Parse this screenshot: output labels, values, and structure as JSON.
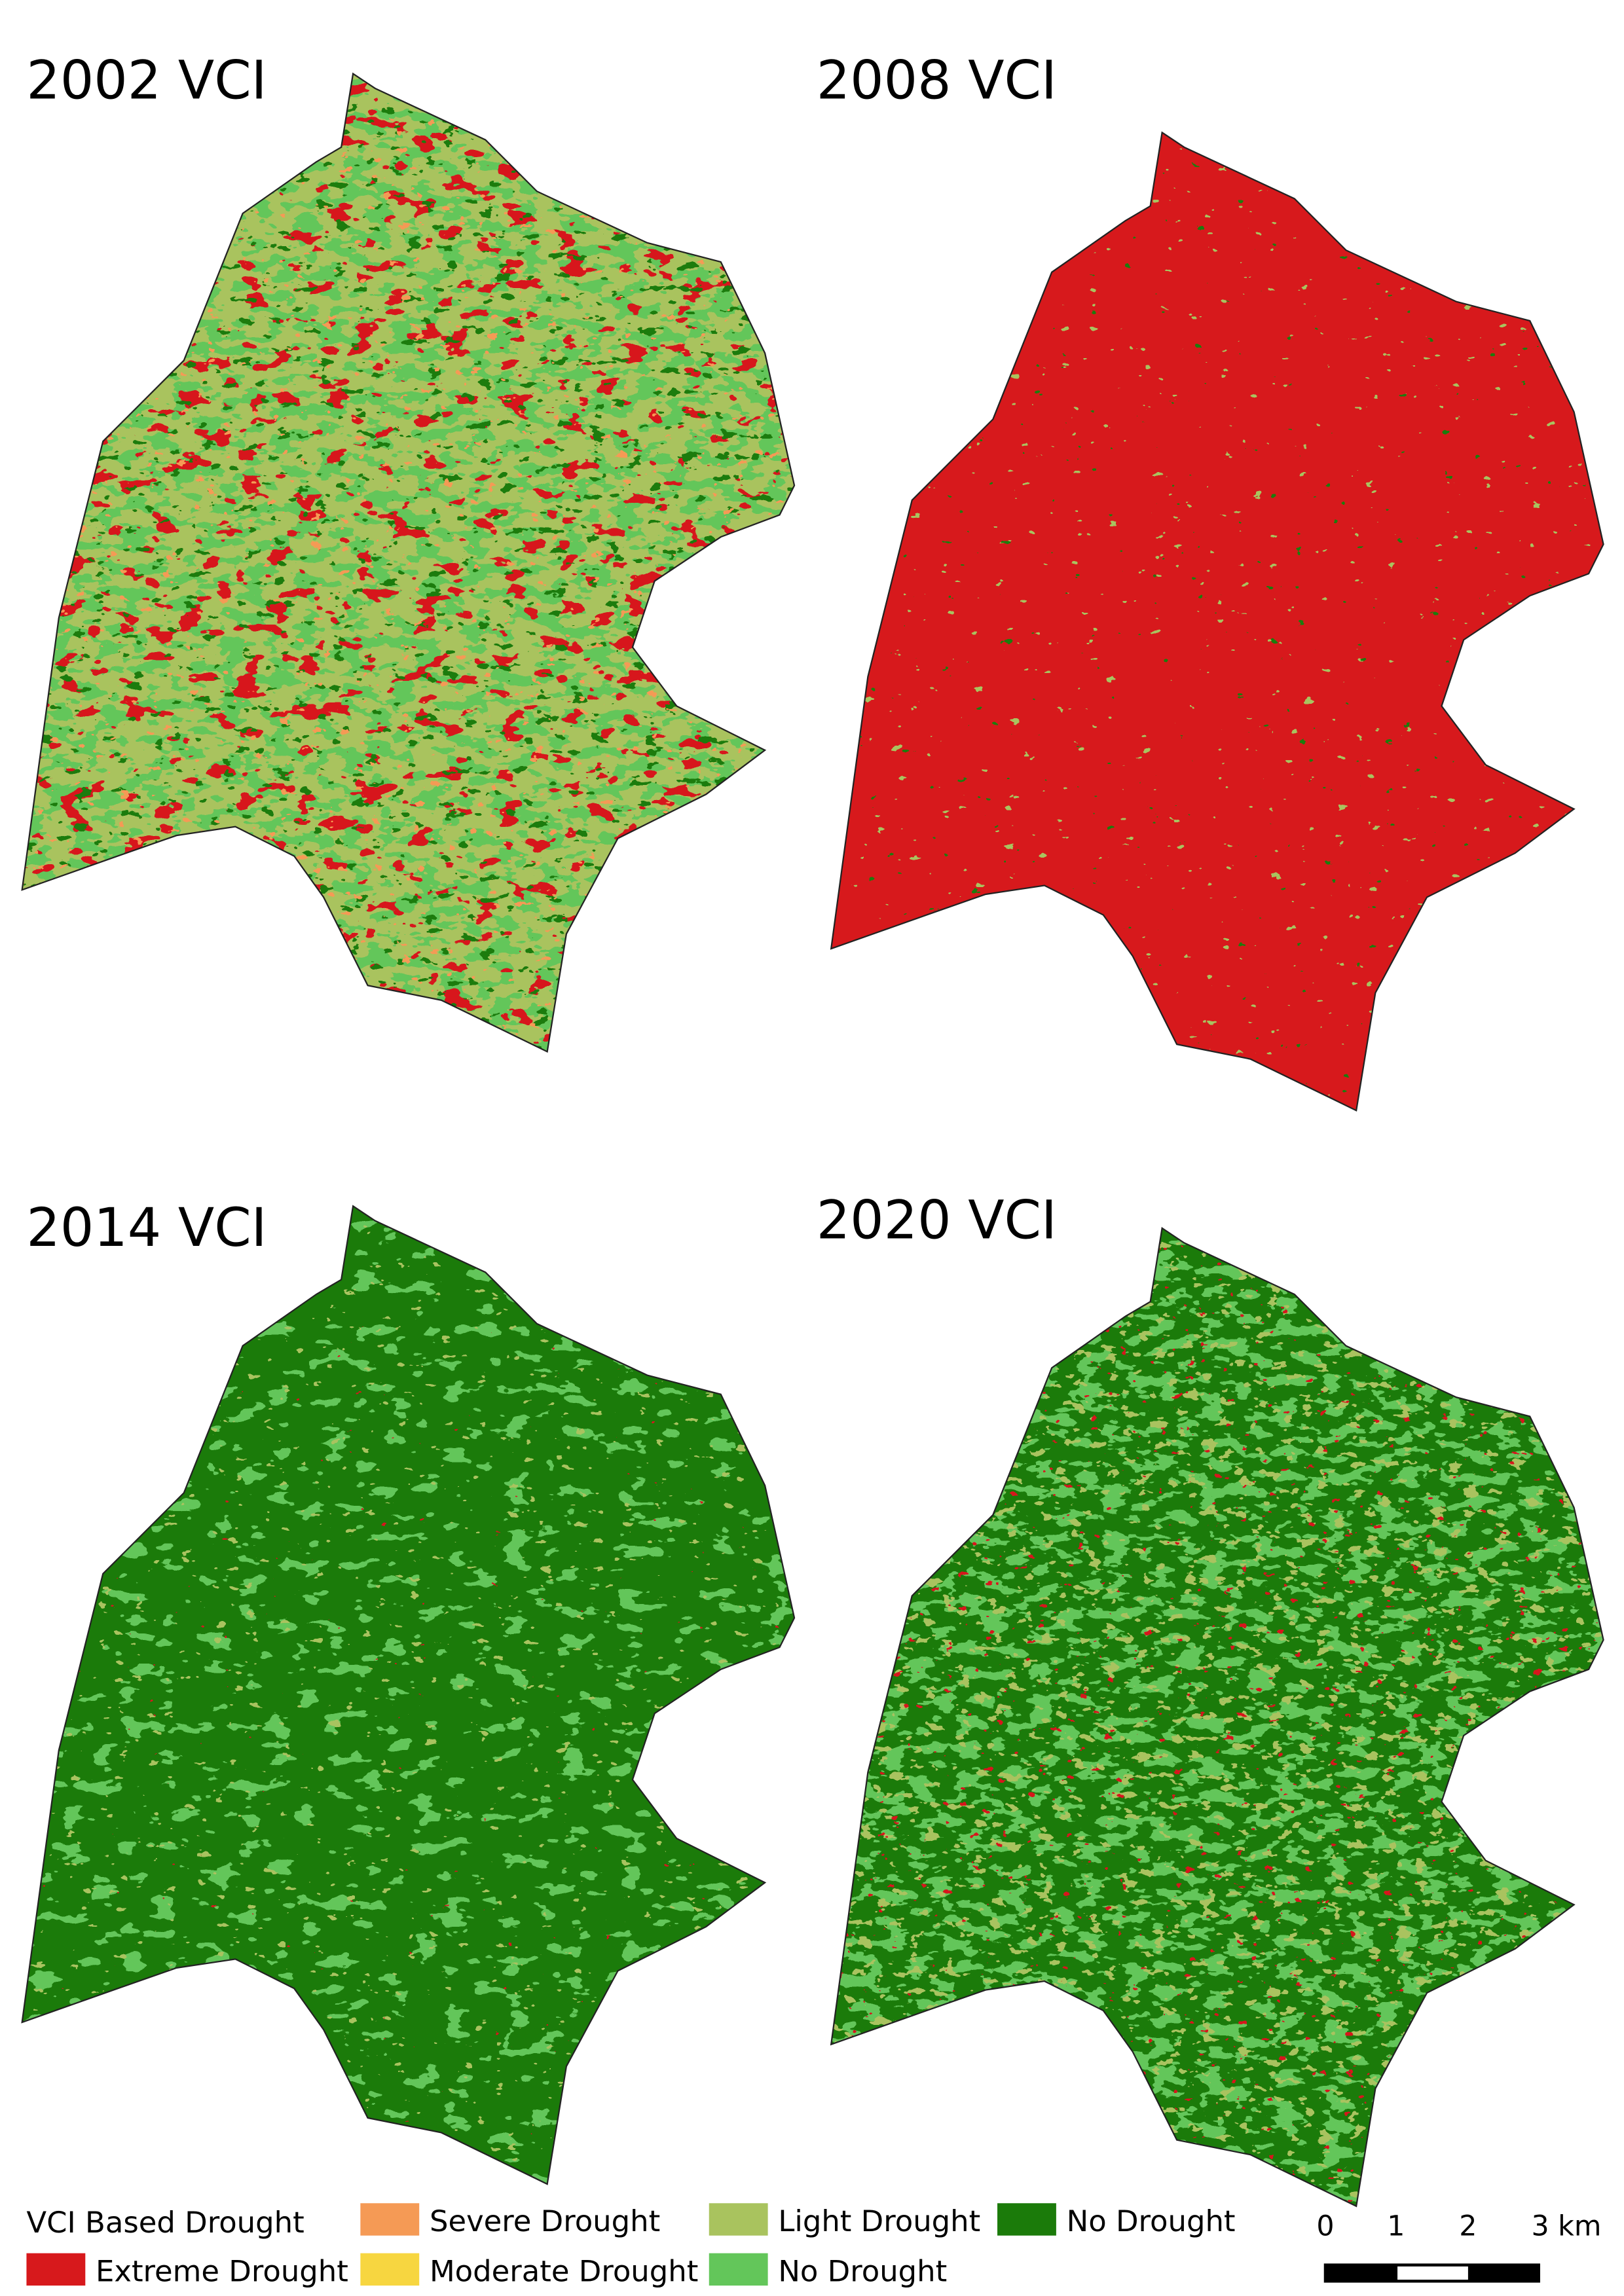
{
  "panels": [
    {
      "title": "2002 VCI"
    },
    {
      "title": "2008 VCI"
    },
    {
      "title": "2014 VCI"
    },
    {
      "title": "2020 VCI"
    }
  ],
  "legend": {
    "title": "VCI Based Drought",
    "items": [
      {
        "label": "Extreme Drought",
        "color": "#d7191c"
      },
      {
        "label": "Severe Drought",
        "color": "#f59a55"
      },
      {
        "label": "Moderate Drought",
        "color": "#f7d640"
      },
      {
        "label": "Light Drought",
        "color": "#a9c35e"
      },
      {
        "label": "No Drought",
        "color": "#63c65a"
      },
      {
        "label": "No Drought",
        "color": "#1b7b0a"
      }
    ]
  },
  "scale_bar": {
    "labels": [
      "0",
      "1",
      "2",
      "3 km"
    ]
  }
}
